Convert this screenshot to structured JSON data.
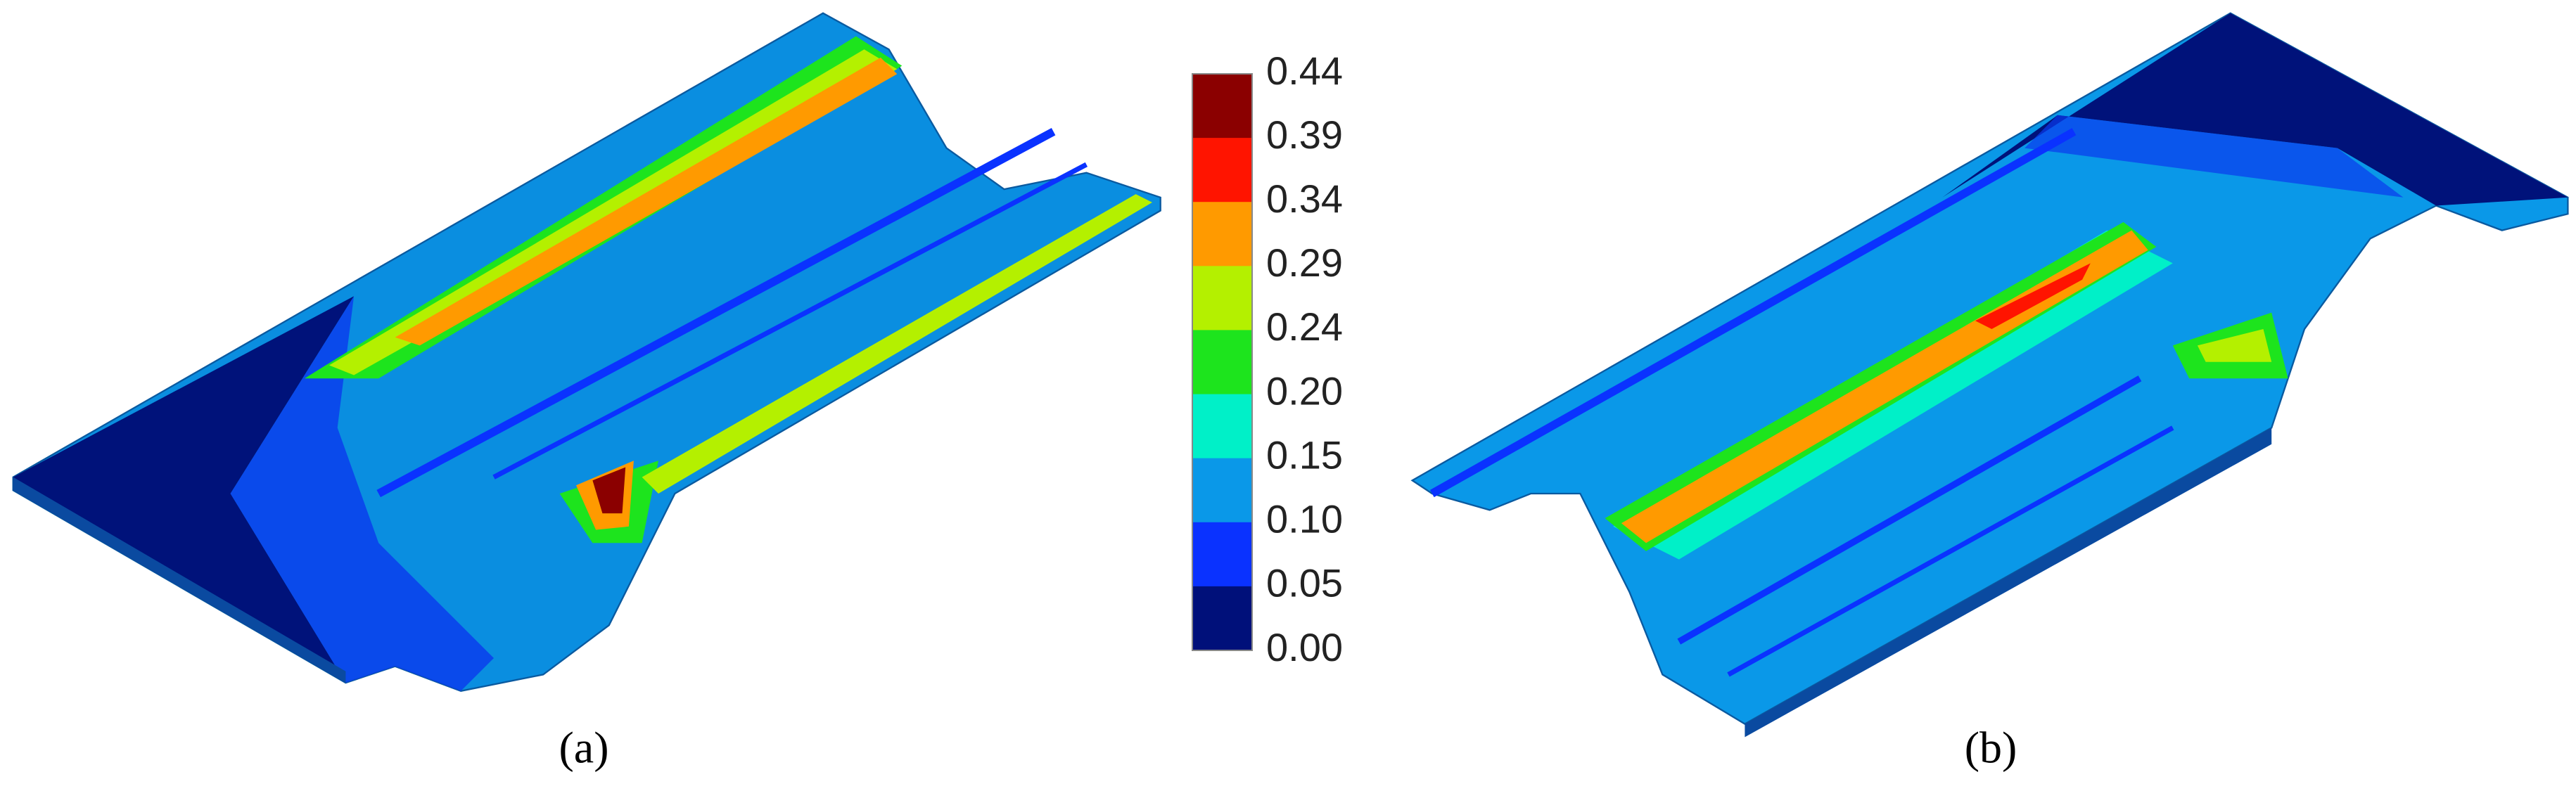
{
  "legend": {
    "labels": [
      "0.44",
      "0.39",
      "0.34",
      "0.29",
      "0.24",
      "0.20",
      "0.15",
      "0.10",
      "0.05",
      "0.00"
    ],
    "colors": [
      "#8b0000",
      "#ff1400",
      "#ff9a00",
      "#b4f000",
      "#1de41d",
      "#00f0c8",
      "#0a98e8",
      "#0a32ff",
      "#00107a"
    ]
  },
  "panels": [
    {
      "label": "(a)"
    },
    {
      "label": "(b)"
    }
  ]
}
